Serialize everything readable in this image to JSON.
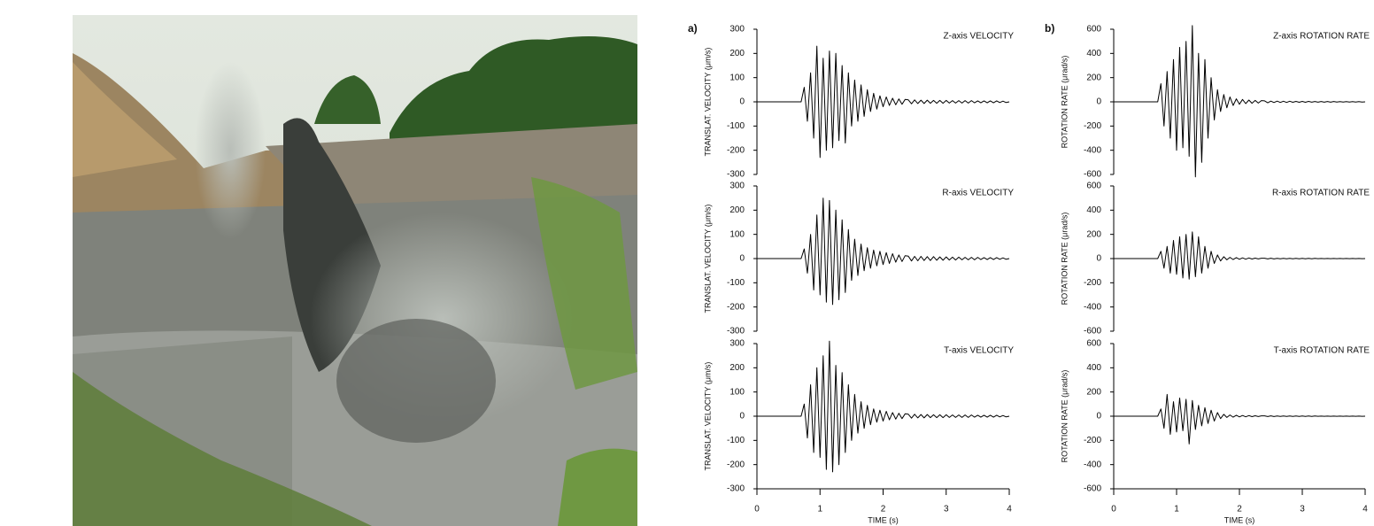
{
  "chart_data": [
    {
      "type": "line",
      "panel_label": "a)",
      "title": "Z-axis  VELOCITY",
      "ylabel": "TRANSLAT.  VELOCITY  (μm/s)",
      "color": "#000000",
      "x": [
        0,
        0.05,
        0.1,
        0.15,
        0.2,
        0.25,
        0.3,
        0.35,
        0.4,
        0.45,
        0.5,
        0.55,
        0.6,
        0.65,
        0.7,
        0.75,
        0.8,
        0.85,
        0.9,
        0.95,
        1,
        1.05,
        1.1,
        1.15,
        1.2,
        1.25,
        1.3,
        1.35,
        1.4,
        1.45,
        1.5,
        1.55,
        1.6,
        1.65,
        1.7,
        1.75,
        1.8,
        1.85,
        1.9,
        1.95,
        2,
        2.05,
        2.1,
        2.15,
        2.2,
        2.25,
        2.3,
        2.35,
        2.4,
        2.45,
        2.5,
        2.55,
        2.6,
        2.65,
        2.7,
        2.75,
        2.8,
        2.85,
        2.9,
        2.95,
        3,
        3.05,
        3.1,
        3.15,
        3.2,
        3.25,
        3.3,
        3.35,
        3.4,
        3.45,
        3.5,
        3.55,
        3.6,
        3.65,
        3.7,
        3.75,
        3.8,
        3.85,
        3.9,
        3.95,
        4
      ],
      "values": [
        0,
        0,
        0,
        0,
        0,
        0,
        0,
        0,
        0,
        0,
        0,
        0,
        0,
        0,
        0,
        60,
        -80,
        120,
        -150,
        230,
        -230,
        180,
        -200,
        210,
        -190,
        200,
        -160,
        150,
        -170,
        120,
        -100,
        90,
        -80,
        70,
        -60,
        50,
        -40,
        35,
        -30,
        25,
        -20,
        20,
        -15,
        15,
        -12,
        12,
        -10,
        10,
        8,
        -8,
        8,
        -7,
        7,
        -7,
        7,
        -6,
        6,
        -6,
        6,
        -6,
        6,
        -5,
        5,
        -5,
        5,
        -5,
        5,
        -5,
        5,
        -4,
        4,
        -4,
        4,
        -4,
        4,
        -4,
        4,
        -3,
        3,
        -3,
        0
      ],
      "xlim": [
        0,
        4
      ],
      "ylim": [
        -300,
        300
      ],
      "yticks": [
        -300,
        -200,
        -100,
        0,
        100,
        200,
        300
      ]
    },
    {
      "type": "line",
      "title": "R-axis  VELOCITY",
      "ylabel": "TRANSLAT.  VELOCITY  (μm/s)",
      "color": "#000000",
      "x": [
        0,
        0.05,
        0.1,
        0.15,
        0.2,
        0.25,
        0.3,
        0.35,
        0.4,
        0.45,
        0.5,
        0.55,
        0.6,
        0.65,
        0.7,
        0.75,
        0.8,
        0.85,
        0.9,
        0.95,
        1,
        1.05,
        1.1,
        1.15,
        1.2,
        1.25,
        1.3,
        1.35,
        1.4,
        1.45,
        1.5,
        1.55,
        1.6,
        1.65,
        1.7,
        1.75,
        1.8,
        1.85,
        1.9,
        1.95,
        2,
        2.05,
        2.1,
        2.15,
        2.2,
        2.25,
        2.3,
        2.35,
        2.4,
        2.45,
        2.5,
        2.55,
        2.6,
        2.65,
        2.7,
        2.75,
        2.8,
        2.85,
        2.9,
        2.95,
        3,
        3.05,
        3.1,
        3.15,
        3.2,
        3.25,
        3.3,
        3.35,
        3.4,
        3.45,
        3.5,
        3.55,
        3.6,
        3.65,
        3.7,
        3.75,
        3.8,
        3.85,
        3.9,
        3.95,
        4
      ],
      "values": [
        0,
        0,
        0,
        0,
        0,
        0,
        0,
        0,
        0,
        0,
        0,
        0,
        0,
        0,
        0,
        40,
        -60,
        100,
        -130,
        180,
        -150,
        250,
        -180,
        240,
        -190,
        200,
        -170,
        160,
        -140,
        120,
        -90,
        80,
        -70,
        60,
        -50,
        45,
        -40,
        35,
        -30,
        30,
        -25,
        25,
        -20,
        20,
        -15,
        15,
        -12,
        12,
        10,
        -10,
        9,
        -9,
        9,
        -8,
        8,
        -8,
        8,
        -7,
        7,
        -7,
        7,
        -6,
        6,
        -6,
        6,
        -5,
        5,
        -5,
        5,
        -5,
        5,
        -4,
        4,
        -4,
        4,
        -4,
        4,
        -3,
        3,
        -3,
        0
      ],
      "xlim": [
        0,
        4
      ],
      "ylim": [
        -300,
        300
      ],
      "yticks": [
        -300,
        -200,
        -100,
        0,
        100,
        200,
        300
      ]
    },
    {
      "type": "line",
      "title": "T-axis  VELOCITY",
      "ylabel": "TRANSLAT.  VELOCITY  (μm/s)",
      "xlabel": "TIME  (s)",
      "color": "#000000",
      "x": [
        0,
        0.05,
        0.1,
        0.15,
        0.2,
        0.25,
        0.3,
        0.35,
        0.4,
        0.45,
        0.5,
        0.55,
        0.6,
        0.65,
        0.7,
        0.75,
        0.8,
        0.85,
        0.9,
        0.95,
        1,
        1.05,
        1.1,
        1.15,
        1.2,
        1.25,
        1.3,
        1.35,
        1.4,
        1.45,
        1.5,
        1.55,
        1.6,
        1.65,
        1.7,
        1.75,
        1.8,
        1.85,
        1.9,
        1.95,
        2,
        2.05,
        2.1,
        2.15,
        2.2,
        2.25,
        2.3,
        2.35,
        2.4,
        2.45,
        2.5,
        2.55,
        2.6,
        2.65,
        2.7,
        2.75,
        2.8,
        2.85,
        2.9,
        2.95,
        3,
        3.05,
        3.1,
        3.15,
        3.2,
        3.25,
        3.3,
        3.35,
        3.4,
        3.45,
        3.5,
        3.55,
        3.6,
        3.65,
        3.7,
        3.75,
        3.8,
        3.85,
        3.9,
        3.95,
        4
      ],
      "values": [
        0,
        0,
        0,
        0,
        0,
        0,
        0,
        0,
        0,
        0,
        0,
        0,
        0,
        0,
        0,
        50,
        -90,
        130,
        -150,
        200,
        -170,
        250,
        -220,
        310,
        -230,
        210,
        -200,
        180,
        -150,
        130,
        -100,
        90,
        -70,
        60,
        -50,
        45,
        -35,
        30,
        -25,
        25,
        -20,
        20,
        -15,
        15,
        -12,
        12,
        -10,
        10,
        8,
        -8,
        8,
        -7,
        7,
        -7,
        7,
        -6,
        6,
        -6,
        6,
        -6,
        6,
        -5,
        5,
        -5,
        5,
        -5,
        5,
        -5,
        5,
        -4,
        4,
        -4,
        4,
        -4,
        4,
        -4,
        4,
        -3,
        3,
        -3,
        0
      ],
      "xlim": [
        0,
        4
      ],
      "ylim": [
        -300,
        300
      ],
      "yticks": [
        -300,
        -200,
        -100,
        0,
        100,
        200,
        300
      ],
      "xticks": [
        0,
        1,
        2,
        3,
        4
      ]
    },
    {
      "type": "line",
      "panel_label": "b)",
      "title": "Z-axis  ROTATION RATE",
      "ylabel": "ROTATION  RATE  (μrad/s)",
      "color": "#000000",
      "x": [
        0,
        0.05,
        0.1,
        0.15,
        0.2,
        0.25,
        0.3,
        0.35,
        0.4,
        0.45,
        0.5,
        0.55,
        0.6,
        0.65,
        0.7,
        0.75,
        0.8,
        0.85,
        0.9,
        0.95,
        1,
        1.05,
        1.1,
        1.15,
        1.2,
        1.25,
        1.3,
        1.35,
        1.4,
        1.45,
        1.5,
        1.55,
        1.6,
        1.65,
        1.7,
        1.75,
        1.8,
        1.85,
        1.9,
        1.95,
        2,
        2.05,
        2.1,
        2.15,
        2.2,
        2.25,
        2.3,
        2.35,
        2.4,
        2.45,
        2.5,
        2.55,
        2.6,
        2.65,
        2.7,
        2.75,
        2.8,
        2.85,
        2.9,
        2.95,
        3,
        3.05,
        3.1,
        3.15,
        3.2,
        3.25,
        3.3,
        3.35,
        3.4,
        3.45,
        3.5,
        3.55,
        3.6,
        3.65,
        3.7,
        3.75,
        3.8,
        3.85,
        3.9,
        3.95,
        4
      ],
      "values": [
        0,
        0,
        0,
        0,
        0,
        0,
        0,
        0,
        0,
        0,
        0,
        0,
        0,
        0,
        0,
        150,
        -200,
        250,
        -300,
        350,
        -400,
        450,
        -380,
        500,
        -450,
        630,
        -620,
        400,
        -500,
        350,
        -300,
        200,
        -150,
        100,
        -80,
        60,
        -50,
        40,
        -30,
        25,
        -20,
        20,
        -15,
        15,
        -12,
        12,
        -10,
        10,
        8,
        -8,
        6,
        -6,
        6,
        -5,
        5,
        -5,
        5,
        -4,
        4,
        -4,
        4,
        -4,
        4,
        -3,
        3,
        -3,
        3,
        -3,
        3,
        -3,
        3,
        -2,
        2,
        -2,
        2,
        -2,
        2,
        -2,
        2,
        -2,
        0
      ],
      "xlim": [
        0,
        4
      ],
      "ylim": [
        -600,
        600
      ],
      "yticks": [
        -600,
        -400,
        -200,
        0,
        200,
        400,
        600
      ]
    },
    {
      "type": "line",
      "title": "R-axis  ROTATION RATE",
      "ylabel": "ROTATION  RATE  (μrad/s)",
      "color": "#000000",
      "x": [
        0,
        0.05,
        0.1,
        0.15,
        0.2,
        0.25,
        0.3,
        0.35,
        0.4,
        0.45,
        0.5,
        0.55,
        0.6,
        0.65,
        0.7,
        0.75,
        0.8,
        0.85,
        0.9,
        0.95,
        1,
        1.05,
        1.1,
        1.15,
        1.2,
        1.25,
        1.3,
        1.35,
        1.4,
        1.45,
        1.5,
        1.55,
        1.6,
        1.65,
        1.7,
        1.75,
        1.8,
        1.85,
        1.9,
        1.95,
        2,
        2.05,
        2.1,
        2.15,
        2.2,
        2.25,
        2.3,
        2.35,
        2.4,
        2.45,
        2.5,
        2.55,
        2.6,
        2.65,
        2.7,
        2.75,
        2.8,
        2.85,
        2.9,
        2.95,
        3,
        3.05,
        3.1,
        3.15,
        3.2,
        3.25,
        3.3,
        3.35,
        3.4,
        3.45,
        3.5,
        3.55,
        3.6,
        3.65,
        3.7,
        3.75,
        3.8,
        3.85,
        3.9,
        3.95,
        4
      ],
      "values": [
        0,
        0,
        0,
        0,
        0,
        0,
        0,
        0,
        0,
        0,
        0,
        0,
        0,
        0,
        0,
        60,
        -80,
        100,
        -120,
        150,
        -130,
        180,
        -160,
        200,
        -170,
        220,
        -150,
        180,
        -120,
        100,
        -80,
        60,
        -40,
        30,
        -20,
        15,
        -10,
        10,
        -8,
        8,
        -6,
        6,
        -5,
        5,
        -4,
        4,
        -3,
        3,
        3,
        -3,
        3,
        -3,
        2,
        -2,
        2,
        -2,
        2,
        -2,
        2,
        -2,
        2,
        -2,
        2,
        -2,
        2,
        -1,
        1,
        -1,
        1,
        -1,
        1,
        -1,
        1,
        -1,
        1,
        -1,
        1,
        -1,
        1,
        -1,
        0
      ],
      "xlim": [
        0,
        4
      ],
      "ylim": [
        -600,
        600
      ],
      "yticks": [
        -600,
        -400,
        -200,
        0,
        200,
        400,
        600
      ]
    },
    {
      "type": "line",
      "title": "T-axis  ROTATION RATE",
      "ylabel": "ROTATION  RATE  (μrad/s)",
      "xlabel": "TIME  (s)",
      "color": "#000000",
      "x": [
        0,
        0.05,
        0.1,
        0.15,
        0.2,
        0.25,
        0.3,
        0.35,
        0.4,
        0.45,
        0.5,
        0.55,
        0.6,
        0.65,
        0.7,
        0.75,
        0.8,
        0.85,
        0.9,
        0.95,
        1,
        1.05,
        1.1,
        1.15,
        1.2,
        1.25,
        1.3,
        1.35,
        1.4,
        1.45,
        1.5,
        1.55,
        1.6,
        1.65,
        1.7,
        1.75,
        1.8,
        1.85,
        1.9,
        1.95,
        2,
        2.05,
        2.1,
        2.15,
        2.2,
        2.25,
        2.3,
        2.35,
        2.4,
        2.45,
        2.5,
        2.55,
        2.6,
        2.65,
        2.7,
        2.75,
        2.8,
        2.85,
        2.9,
        2.95,
        3,
        3.05,
        3.1,
        3.15,
        3.2,
        3.25,
        3.3,
        3.35,
        3.4,
        3.45,
        3.5,
        3.55,
        3.6,
        3.65,
        3.7,
        3.75,
        3.8,
        3.85,
        3.9,
        3.95,
        4
      ],
      "values": [
        0,
        0,
        0,
        0,
        0,
        0,
        0,
        0,
        0,
        0,
        0,
        0,
        0,
        0,
        0,
        60,
        -100,
        180,
        -150,
        120,
        -130,
        150,
        -120,
        140,
        -230,
        130,
        -110,
        90,
        -80,
        70,
        -60,
        50,
        -40,
        30,
        -20,
        15,
        -10,
        10,
        -8,
        8,
        -6,
        6,
        -5,
        5,
        -4,
        4,
        -3,
        3,
        3,
        -3,
        3,
        -3,
        2,
        -2,
        2,
        -2,
        2,
        -2,
        2,
        -2,
        2,
        -2,
        2,
        -2,
        2,
        -1,
        1,
        -1,
        1,
        -1,
        1,
        -1,
        1,
        -1,
        1,
        -1,
        1,
        -1,
        1,
        -1,
        0
      ],
      "xlim": [
        0,
        4
      ],
      "ylim": [
        -600,
        600
      ],
      "yticks": [
        -600,
        -400,
        -200,
        0,
        200,
        400,
        600
      ],
      "xticks": [
        0,
        1,
        2,
        3,
        4
      ]
    }
  ]
}
